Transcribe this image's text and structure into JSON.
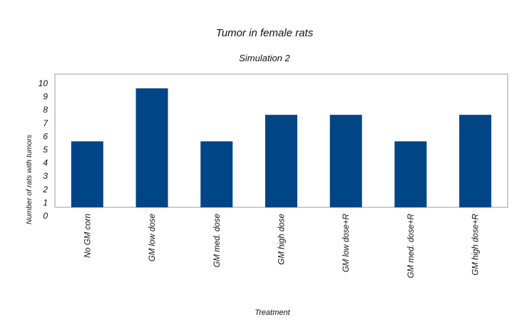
{
  "chart_data": {
    "type": "bar",
    "title": "Tumor in female rats",
    "subtitle": "Simulation 2",
    "xlabel": "Treatment",
    "ylabel": "Number of rats with tumors",
    "categories": [
      "No GM corn",
      "GM  low dose",
      "GM  med. dose",
      "GM  high dose",
      "GM  low dose+R",
      "GM  med. dose+R",
      "GM  high dose+R"
    ],
    "values": [
      6,
      10,
      6,
      8,
      8,
      6,
      8
    ],
    "ylim": [
      0,
      10
    ],
    "yticks": [
      "0",
      "1",
      "2",
      "3",
      "4",
      "5",
      "6",
      "7",
      "8",
      "9",
      "10"
    ],
    "grid": false,
    "legend": "none",
    "bar_color": "#004586",
    "frame_color": "#cccccc"
  }
}
